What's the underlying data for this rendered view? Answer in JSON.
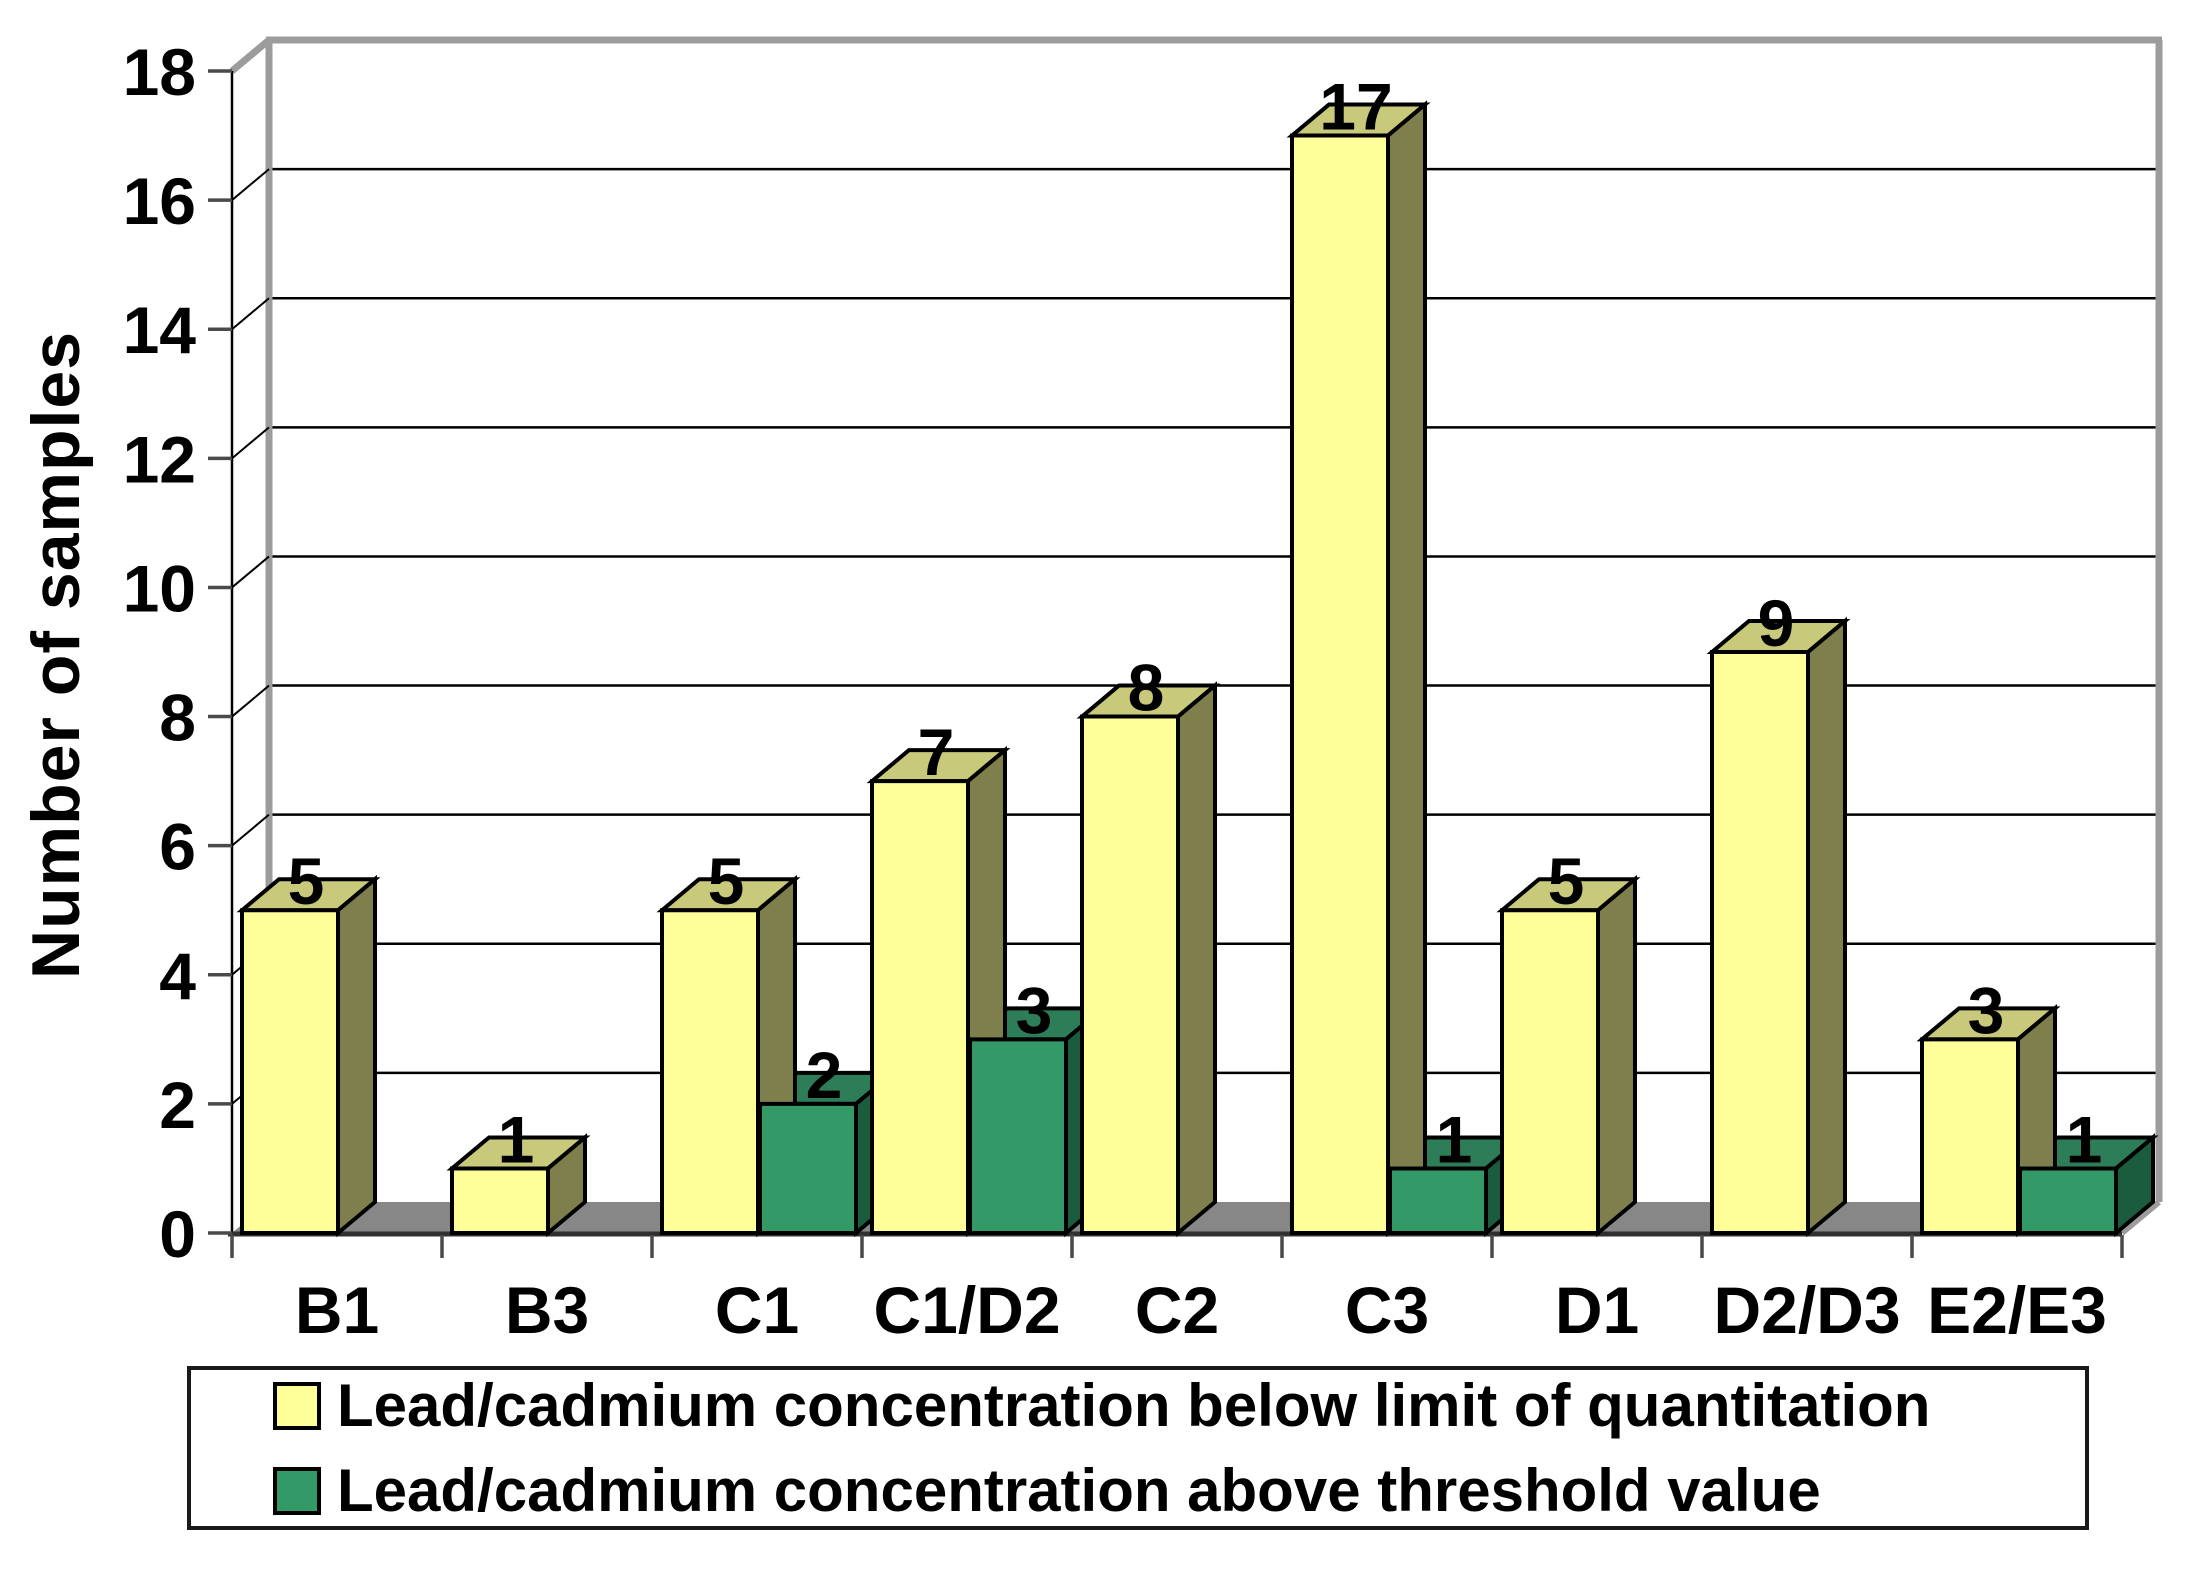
{
  "chart_data": {
    "type": "bar",
    "projection": "3d",
    "ylabel": "Number of samples",
    "categories": [
      "B1",
      "B3",
      "C1",
      "C1/D2",
      "C2",
      "C3",
      "D1",
      "D2/D3",
      "E2/E3"
    ],
    "series": [
      {
        "name": "Lead/cadmium concentration below limit of quantitation",
        "color": "#FFFF99",
        "shade_top": "#C9C97B",
        "shade_side": "#7F7F4D",
        "values": [
          5,
          1,
          5,
          7,
          8,
          17,
          5,
          9,
          3
        ]
      },
      {
        "name": "Lead/cadmium concentration above threshold value",
        "color": "#339966",
        "shade_top": "#2D7D58",
        "shade_side": "#1B5B3E",
        "values": [
          null,
          null,
          2,
          3,
          null,
          1,
          null,
          null,
          1
        ]
      }
    ],
    "ylim": [
      0,
      18
    ],
    "ytick_step": 2,
    "ytick_labels": [
      "0",
      "2",
      "4",
      "6",
      "8",
      "10",
      "12",
      "14",
      "16",
      "18"
    ],
    "grid": "horizontal",
    "legend_position": "bottom",
    "data_labels": true,
    "floor_color": "#878787",
    "wall_border_color": "#9C9C9C",
    "gridline_color": "#000000",
    "background_color": "#FFFFFF"
  }
}
